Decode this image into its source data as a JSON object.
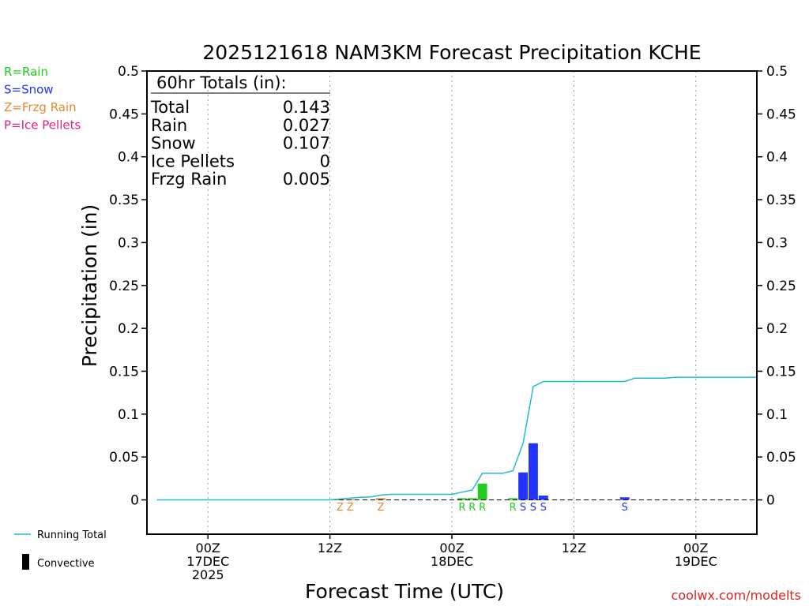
{
  "chart_data": {
    "type": "bar",
    "title": "2025121618 NAM3KM Forecast Precipitation KCHE",
    "xlabel": "Forecast Time (UTC)",
    "ylabel": "Precipitation (in)",
    "ylim": [
      -0.04,
      0.5
    ],
    "yticks": [
      0,
      0.05,
      0.1,
      0.15,
      0.2,
      0.25,
      0.3,
      0.35,
      0.4,
      0.45,
      0.5
    ],
    "xlim": [
      -6,
      54
    ],
    "grid": true,
    "x_ticks": [
      {
        "hour": 0,
        "lines": [
          "00Z",
          "17DEC",
          "2025"
        ]
      },
      {
        "hour": 12,
        "lines": [
          "12Z"
        ]
      },
      {
        "hour": 24,
        "lines": [
          "00Z",
          "18DEC"
        ]
      },
      {
        "hour": 36,
        "lines": [
          "12Z"
        ]
      },
      {
        "hour": 48,
        "lines": [
          "00Z",
          "19DEC"
        ]
      }
    ],
    "type_legend": [
      {
        "label": "R=Rain",
        "color": "#22cc22"
      },
      {
        "label": "S=Snow",
        "color": "#2233ff"
      },
      {
        "label": "Z=Frzg Rain",
        "color": "#e08a2c"
      },
      {
        "label": "P=Ice Pellets",
        "color": "#e0208a"
      }
    ],
    "series_legend": {
      "running_total": {
        "label": "Running Total",
        "color": "#22bbcc"
      },
      "convective": {
        "label": "Convective",
        "color": "#000000"
      }
    },
    "totals": {
      "header": "60hr Totals (in):",
      "rows": [
        {
          "label": "Total",
          "value": "0.143"
        },
        {
          "label": "Rain",
          "value": "0.027"
        },
        {
          "label": "Snow",
          "value": "0.107"
        },
        {
          "label": "Ice Pellets",
          "value": "0"
        },
        {
          "label": "Frzg Rain",
          "value": "0.005"
        }
      ]
    },
    "type_colors": {
      "R": "#22cc22",
      "S": "#2233ff",
      "Z": "#e08a2c",
      "P": "#e0208a"
    },
    "bars": [
      {
        "hour": 13,
        "value": 0.0005,
        "type": "Z"
      },
      {
        "hour": 14,
        "value": 0.0005,
        "type": "Z"
      },
      {
        "hour": 17,
        "value": 0.002,
        "type": "Z"
      },
      {
        "hour": 25,
        "value": 0.002,
        "type": "R"
      },
      {
        "hour": 26,
        "value": 0.002,
        "type": "R"
      },
      {
        "hour": 27,
        "value": 0.019,
        "type": "R"
      },
      {
        "hour": 30,
        "value": 0.002,
        "type": "R"
      },
      {
        "hour": 31,
        "value": 0.032,
        "type": "S"
      },
      {
        "hour": 32,
        "value": 0.066,
        "type": "S"
      },
      {
        "hour": 33,
        "value": 0.005,
        "type": "S"
      },
      {
        "hour": 41,
        "value": 0.003,
        "type": "S"
      }
    ],
    "running_total": {
      "hours": [
        -5,
        12,
        13,
        14,
        15,
        16,
        17,
        18,
        19,
        20,
        21,
        22,
        23,
        24,
        25,
        26,
        27,
        28,
        29,
        30,
        31,
        32,
        33,
        34,
        35,
        36,
        37,
        38,
        39,
        40,
        41,
        42,
        43,
        44,
        45,
        46,
        47,
        48,
        49,
        50,
        51,
        52,
        53,
        54
      ],
      "values": [
        0,
        0,
        0.001,
        0.002,
        0.003,
        0.0035,
        0.0055,
        0.0065,
        0.0065,
        0.0065,
        0.0065,
        0.0065,
        0.0065,
        0.0065,
        0.009,
        0.0115,
        0.031,
        0.031,
        0.031,
        0.034,
        0.066,
        0.132,
        0.138,
        0.138,
        0.138,
        0.138,
        0.138,
        0.138,
        0.138,
        0.138,
        0.138,
        0.142,
        0.142,
        0.142,
        0.142,
        0.143,
        0.143,
        0.143,
        0.143,
        0.143,
        0.143,
        0.143,
        0.143,
        0.143
      ]
    }
  },
  "credit": "coolwx.com/modelts"
}
